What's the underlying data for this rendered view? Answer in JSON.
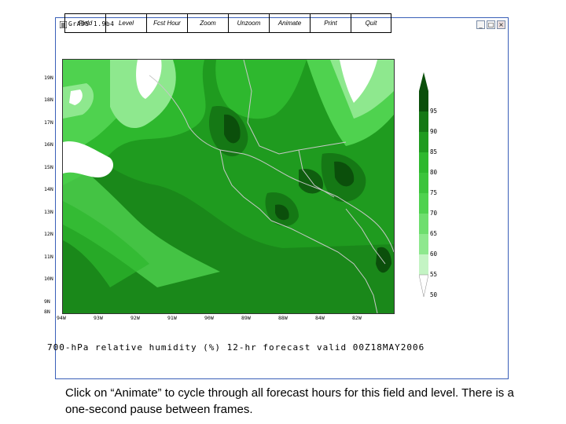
{
  "window": {
    "title": "GrADS 1.9b4",
    "controls": {
      "minimize": "_",
      "maximize": "□",
      "close": "×"
    }
  },
  "menu": {
    "items": [
      {
        "label": "Field"
      },
      {
        "label": "Level"
      },
      {
        "label": "Fcst Hour"
      },
      {
        "label": "Zoom"
      },
      {
        "label": "Unzoom"
      },
      {
        "label": "Animate"
      },
      {
        "label": "Print"
      },
      {
        "label": "Quit"
      }
    ]
  },
  "map": {
    "lat_labels": [
      "19N",
      "18N",
      "17N",
      "16N",
      "15N",
      "14N",
      "13N",
      "12N",
      "11N",
      "10N",
      "9N",
      "8N"
    ],
    "lon_labels": [
      "94W",
      "93W",
      "92W",
      "91W",
      "90W",
      "89W",
      "88W",
      "84W",
      "82W"
    ],
    "colors": {
      "saturated_dark": "#0b4f0b",
      "very_moist": "#157815",
      "moist": "#1f9b1f",
      "medium": "#2eb82e",
      "light": "#4fd24f",
      "pale": "#8ee88e",
      "dry": "#ffffff",
      "outline": "#c8c8c8"
    }
  },
  "colorbar": {
    "labels": [
      "95",
      "90",
      "85",
      "80",
      "75",
      "70",
      "65",
      "60",
      "55",
      "50"
    ]
  },
  "plot_title": "700-hPa relative humidity (%) 12-hr forecast valid 00Z18MAY2006",
  "caption": "Click on “Animate” to cycle through all forecast hours for this field and level. There is a one-second pause between frames."
}
